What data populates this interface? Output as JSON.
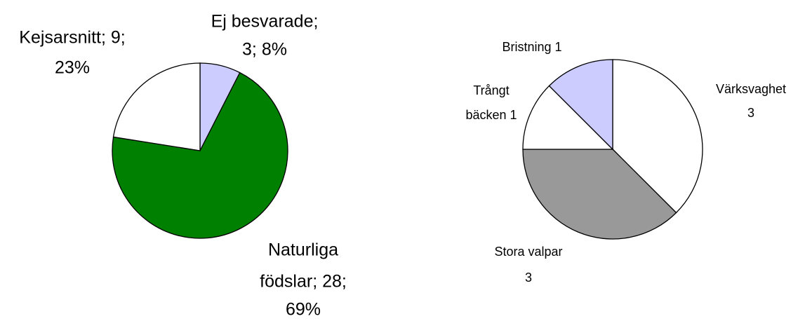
{
  "chart_data": [
    {
      "type": "pie",
      "values": [
        3,
        28,
        9
      ],
      "value_labels": [
        [
          "Ej besvarade;",
          "3; 8%"
        ],
        [
          "Naturliga",
          "födslar; 28;",
          "69%"
        ],
        [
          "Kejsarsnitt; 9;",
          "23%"
        ]
      ],
      "colors": [
        "#ccccff",
        "#008000",
        "#ffffff"
      ]
    },
    {
      "type": "pie",
      "values": [
        3,
        3,
        1,
        1
      ],
      "value_labels": [
        [
          "Värksvaghet",
          "3"
        ],
        [
          "Stora valpar",
          "3"
        ],
        [
          "Trångt",
          "bäcken 1"
        ],
        [
          "Bristning 1"
        ]
      ],
      "colors": [
        "#ffffff",
        "#999999",
        "#ffffff",
        "#ccccff"
      ]
    }
  ]
}
